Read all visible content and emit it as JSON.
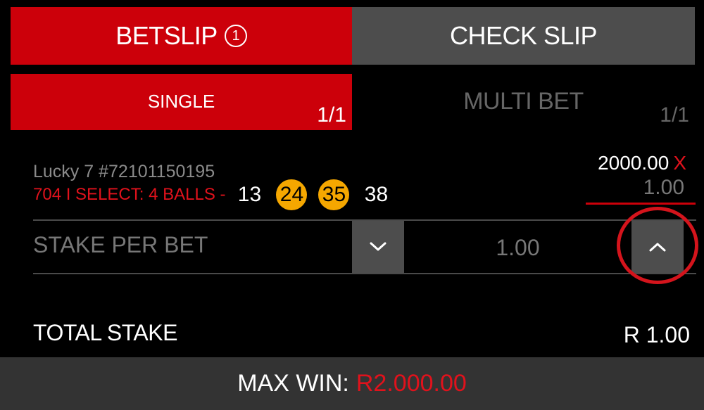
{
  "tabs": {
    "betslip_label": "BETSLIP",
    "betslip_count": "1",
    "check_label": "CHECK SLIP"
  },
  "subtabs": {
    "single_label": "SINGLE",
    "single_count": "1/1",
    "multi_label": "MULTI BET",
    "multi_count": "1/1"
  },
  "bet": {
    "game": "Lucky 7 #72101150195",
    "selection": "704 I SELECT: 4 BALLS -",
    "balls": [
      {
        "number": "13",
        "hit": false
      },
      {
        "number": "24",
        "hit": true
      },
      {
        "number": "35",
        "hit": true
      },
      {
        "number": "38",
        "hit": false
      }
    ],
    "odds": "2000.00",
    "odds_mark": "X",
    "line_stake": "1.00"
  },
  "stake": {
    "label": "STAKE PER BET",
    "value": "1.00"
  },
  "totals": {
    "total_stake_label": "TOTAL STAKE",
    "total_stake_value": "R 1.00",
    "max_win_label": "MAX WIN:",
    "max_win_value": "R2.000.00"
  },
  "colors": {
    "accent_red": "#cc000a",
    "ball_hit": "#f5a700",
    "inactive_gray": "#4d4d4d"
  }
}
